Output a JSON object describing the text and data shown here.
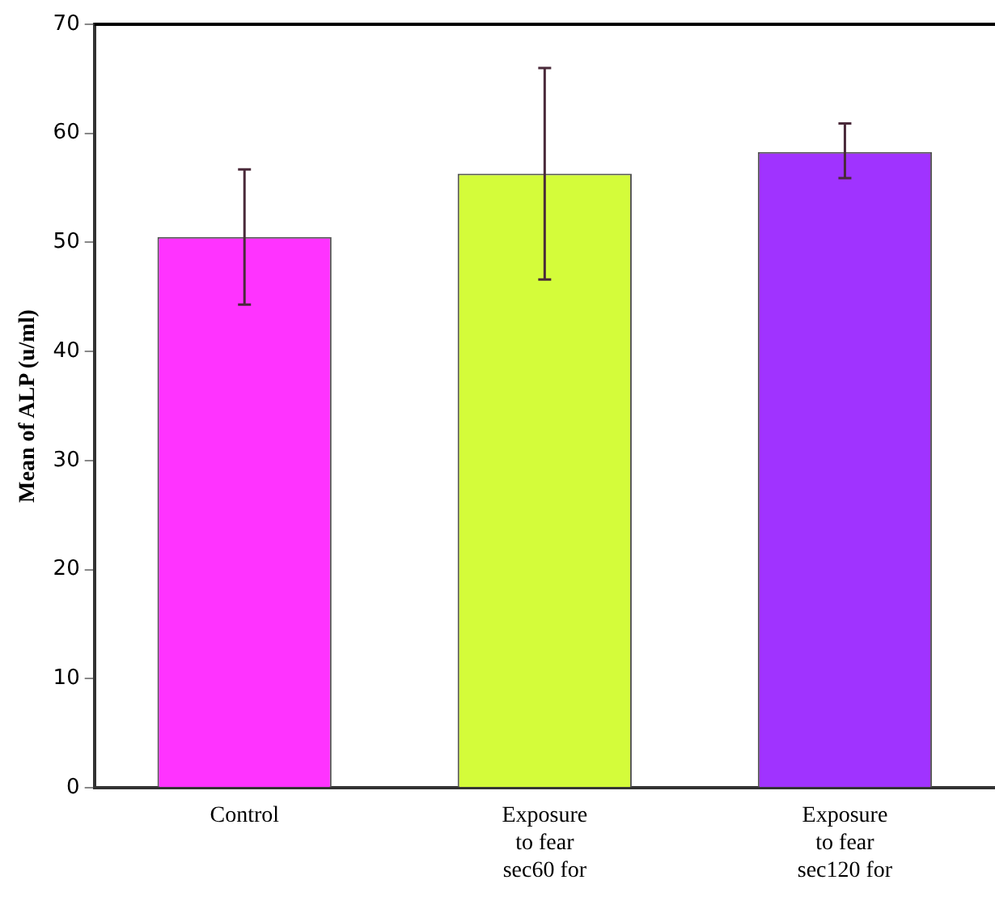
{
  "chart_data": {
    "type": "bar",
    "ylabel": "Mean of ALP (u/ml)",
    "categories": [
      "Control",
      "Exposure\nto fear\nsec60 for",
      "Exposure\nto fear\nsec120 for"
    ],
    "values": [
      50.5,
      56.3,
      58.3
    ],
    "colors": [
      "#ff33ff",
      "#d4fc3a",
      "#a033ff"
    ],
    "errors": [
      [
        44.3,
        56.7
      ],
      [
        46.6,
        66.0
      ],
      [
        55.9,
        60.9
      ]
    ],
    "ylim": [
      0,
      70
    ],
    "yticks": [
      0,
      10,
      20,
      30,
      40,
      50,
      60,
      70
    ],
    "grid": false,
    "legend": false
  }
}
